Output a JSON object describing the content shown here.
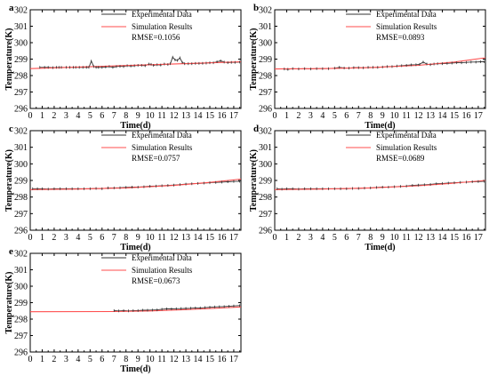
{
  "colors": {
    "experimental": "#333333",
    "simulation": "#ff4d4d",
    "axis": "#000000"
  },
  "chart_data": [
    {
      "panel_label": "a",
      "type": "line",
      "xlabel": "Time(d)",
      "ylabel": "Temperature(K)",
      "xlim": [
        0,
        17.6
      ],
      "ylim": [
        296,
        302
      ],
      "xticks": [
        0,
        1,
        2,
        3,
        4,
        5,
        6,
        7,
        8,
        9,
        10,
        11,
        12,
        13,
        14,
        15,
        16,
        17
      ],
      "yticks": [
        296,
        297,
        298,
        299,
        300,
        301,
        302
      ],
      "legend_placement": "top-center",
      "rmse_label": "RMSE=0.1056",
      "series": [
        {
          "name": "Experimental Data",
          "x": [
            0.8,
            1.2,
            1.5,
            1.9,
            2.2,
            2.4,
            2.6,
            3.0,
            3.3,
            3.6,
            3.8,
            4.1,
            4.4,
            4.7,
            4.9,
            5.1,
            5.3,
            5.5,
            5.7,
            6.0,
            6.3,
            6.6,
            6.9,
            7.2,
            7.5,
            7.8,
            8.1,
            8.4,
            8.7,
            9.0,
            9.3,
            9.6,
            9.9,
            10.1,
            10.3,
            10.6,
            10.9,
            11.2,
            11.5,
            11.7,
            11.9,
            12.1,
            12.3,
            12.5,
            12.7,
            12.9,
            13.2,
            13.5,
            13.8,
            14.1,
            14.4,
            14.7,
            15.0,
            15.3,
            15.6,
            15.9,
            16.2,
            16.5,
            16.8,
            17.1,
            17.5
          ],
          "y": [
            298.5,
            298.5,
            298.5,
            298.48,
            298.5,
            298.5,
            298.5,
            298.5,
            298.5,
            298.5,
            298.5,
            298.5,
            298.5,
            298.5,
            298.5,
            298.88,
            298.55,
            298.5,
            298.5,
            298.5,
            298.52,
            298.55,
            298.5,
            298.55,
            298.56,
            298.55,
            298.6,
            298.58,
            298.6,
            298.62,
            298.62,
            298.6,
            298.7,
            298.68,
            298.62,
            298.66,
            298.64,
            298.7,
            298.67,
            298.72,
            299.12,
            298.95,
            298.92,
            299.08,
            298.8,
            298.72,
            298.72,
            298.72,
            298.74,
            298.74,
            298.74,
            298.76,
            298.78,
            298.78,
            298.84,
            298.9,
            298.82,
            298.78,
            298.8,
            298.8,
            298.82
          ]
        },
        {
          "name": "Simulation Results",
          "x": [
            0,
            17.6
          ],
          "y": [
            298.42,
            298.84
          ]
        }
      ]
    },
    {
      "panel_label": "b",
      "type": "line",
      "xlabel": "Time(d)",
      "ylabel": "Temperature(K)",
      "xlim": [
        0,
        17.6
      ],
      "ylim": [
        296,
        302
      ],
      "xticks": [
        0,
        1,
        2,
        3,
        4,
        5,
        6,
        7,
        8,
        9,
        10,
        11,
        12,
        13,
        14,
        15,
        16,
        17
      ],
      "yticks": [
        296,
        297,
        298,
        299,
        300,
        301,
        302
      ],
      "legend_placement": "top-center",
      "rmse_label": "RMSE=0.0893",
      "series": [
        {
          "name": "Experimental Data",
          "x": [
            0.8,
            1.1,
            1.5,
            2.0,
            2.5,
            3.0,
            3.5,
            4.0,
            4.5,
            5.0,
            5.4,
            5.8,
            6.2,
            6.6,
            7.0,
            7.4,
            7.8,
            8.2,
            8.6,
            9.0,
            9.4,
            9.8,
            10.2,
            10.6,
            11.0,
            11.4,
            11.8,
            12.1,
            12.4,
            12.7,
            13.0,
            13.3,
            13.6,
            14.0,
            14.4,
            14.8,
            15.2,
            15.6,
            16.0,
            16.4,
            16.8,
            17.2,
            17.5
          ],
          "y": [
            298.4,
            298.38,
            298.42,
            298.4,
            298.42,
            298.4,
            298.42,
            298.42,
            298.42,
            298.45,
            298.5,
            298.46,
            298.45,
            298.48,
            298.48,
            298.47,
            298.5,
            298.5,
            298.5,
            298.52,
            298.55,
            298.55,
            298.58,
            298.6,
            298.62,
            298.65,
            298.66,
            298.68,
            298.82,
            298.7,
            298.66,
            298.7,
            298.72,
            298.72,
            298.74,
            298.76,
            298.78,
            298.78,
            298.8,
            298.82,
            298.82,
            298.84,
            298.84
          ]
        },
        {
          "name": "Simulation Results",
          "x": [
            0,
            4,
            8,
            12,
            15,
            17.6
          ],
          "y": [
            298.4,
            298.42,
            298.48,
            298.62,
            298.82,
            299.08
          ]
        }
      ]
    },
    {
      "panel_label": "c",
      "type": "line",
      "xlabel": "Time(d)",
      "ylabel": "Temperature(K)",
      "xlim": [
        0,
        17.6
      ],
      "ylim": [
        296,
        302
      ],
      "xticks": [
        0,
        1,
        2,
        3,
        4,
        5,
        6,
        7,
        8,
        9,
        10,
        11,
        12,
        13,
        14,
        15,
        16,
        17
      ],
      "yticks": [
        296,
        297,
        298,
        299,
        300,
        301,
        302
      ],
      "legend_placement": "top-center",
      "rmse_label": "RMSE=0.0757",
      "series": [
        {
          "name": "Experimental Data",
          "x": [
            0.2,
            0.6,
            1.0,
            1.5,
            2.0,
            2.5,
            3.0,
            3.5,
            4.0,
            4.5,
            5.0,
            5.5,
            6.0,
            6.5,
            7.0,
            7.5,
            8.0,
            8.5,
            9.0,
            9.5,
            10.0,
            10.5,
            11.0,
            11.5,
            12.0,
            12.5,
            13.0,
            13.5,
            14.0,
            14.5,
            15.0,
            15.5,
            16.0,
            16.5,
            17.0,
            17.5
          ],
          "y": [
            298.5,
            298.5,
            298.5,
            298.48,
            298.5,
            298.5,
            298.5,
            298.5,
            298.5,
            298.5,
            298.5,
            298.52,
            298.5,
            298.55,
            298.55,
            298.56,
            298.58,
            298.6,
            298.6,
            298.62,
            298.65,
            298.66,
            298.68,
            298.7,
            298.72,
            298.75,
            298.78,
            298.8,
            298.82,
            298.84,
            298.86,
            298.88,
            298.9,
            298.92,
            298.94,
            298.95
          ]
        },
        {
          "name": "Simulation Results",
          "x": [
            0,
            4,
            8,
            12,
            15,
            17.6
          ],
          "y": [
            298.45,
            298.48,
            298.55,
            298.7,
            298.88,
            299.08
          ]
        }
      ]
    },
    {
      "panel_label": "d",
      "type": "line",
      "xlabel": "Time(d)",
      "ylabel": "Temperature(K)",
      "xlim": [
        0,
        17.6
      ],
      "ylim": [
        296,
        302
      ],
      "xticks": [
        0,
        1,
        2,
        3,
        4,
        5,
        6,
        7,
        8,
        9,
        10,
        11,
        12,
        13,
        14,
        15,
        16,
        17
      ],
      "yticks": [
        296,
        297,
        298,
        299,
        300,
        301,
        302
      ],
      "legend_placement": "top-center",
      "rmse_label": "RMSE=0.0689",
      "series": [
        {
          "name": "Experimental Data",
          "x": [
            0.2,
            0.6,
            1.0,
            1.5,
            2.0,
            2.5,
            3.0,
            3.5,
            4.0,
            4.5,
            5.0,
            5.5,
            6.0,
            6.5,
            7.0,
            7.5,
            8.0,
            8.5,
            9.0,
            9.5,
            10.0,
            10.5,
            11.0,
            11.5,
            12.0,
            12.5,
            13.0,
            13.5,
            14.0,
            14.5,
            15.0,
            15.5,
            16.0,
            16.5,
            17.0,
            17.5
          ],
          "y": [
            298.5,
            298.48,
            298.5,
            298.5,
            298.48,
            298.5,
            298.5,
            298.5,
            298.5,
            298.5,
            298.5,
            298.5,
            298.5,
            298.52,
            298.52,
            298.54,
            298.55,
            298.58,
            298.6,
            298.6,
            298.62,
            298.64,
            298.66,
            298.7,
            298.72,
            298.74,
            298.76,
            298.8,
            298.82,
            298.84,
            298.86,
            298.88,
            298.9,
            298.92,
            298.93,
            298.95
          ]
        },
        {
          "name": "Simulation Results",
          "x": [
            0,
            4,
            8,
            12,
            15,
            17.6
          ],
          "y": [
            298.45,
            298.48,
            298.55,
            298.68,
            298.84,
            299.0
          ]
        }
      ]
    },
    {
      "panel_label": "e",
      "type": "line",
      "xlabel": "Time(d)",
      "ylabel": "Temperature(K)",
      "xlim": [
        0,
        17.6
      ],
      "ylim": [
        296,
        302
      ],
      "xticks": [
        0,
        1,
        2,
        3,
        4,
        5,
        6,
        7,
        8,
        9,
        10,
        11,
        12,
        13,
        14,
        15,
        16,
        17
      ],
      "yticks": [
        296,
        297,
        298,
        299,
        300,
        301,
        302
      ],
      "legend_placement": "top-center",
      "rmse_label": "RMSE=0.0673",
      "series": [
        {
          "name": "Experimental Data",
          "x": [
            7.0,
            7.4,
            7.8,
            8.2,
            8.6,
            9.0,
            9.4,
            9.8,
            10.2,
            10.6,
            11.0,
            11.4,
            11.8,
            12.2,
            12.6,
            13.0,
            13.4,
            13.8,
            14.2,
            14.6,
            15.0,
            15.4,
            15.8,
            16.2,
            16.6,
            17.0,
            17.5
          ],
          "y": [
            298.52,
            298.5,
            298.52,
            298.5,
            298.52,
            298.52,
            298.54,
            298.54,
            298.55,
            298.56,
            298.6,
            298.62,
            298.62,
            298.63,
            298.64,
            298.65,
            298.66,
            298.68,
            298.68,
            298.7,
            298.72,
            298.74,
            298.75,
            298.76,
            298.78,
            298.8,
            298.82
          ]
        },
        {
          "name": "Simulation Results",
          "x": [
            0,
            7,
            10,
            13,
            16,
            17.6
          ],
          "y": [
            298.45,
            298.46,
            298.5,
            298.58,
            298.68,
            298.74
          ]
        }
      ]
    }
  ]
}
